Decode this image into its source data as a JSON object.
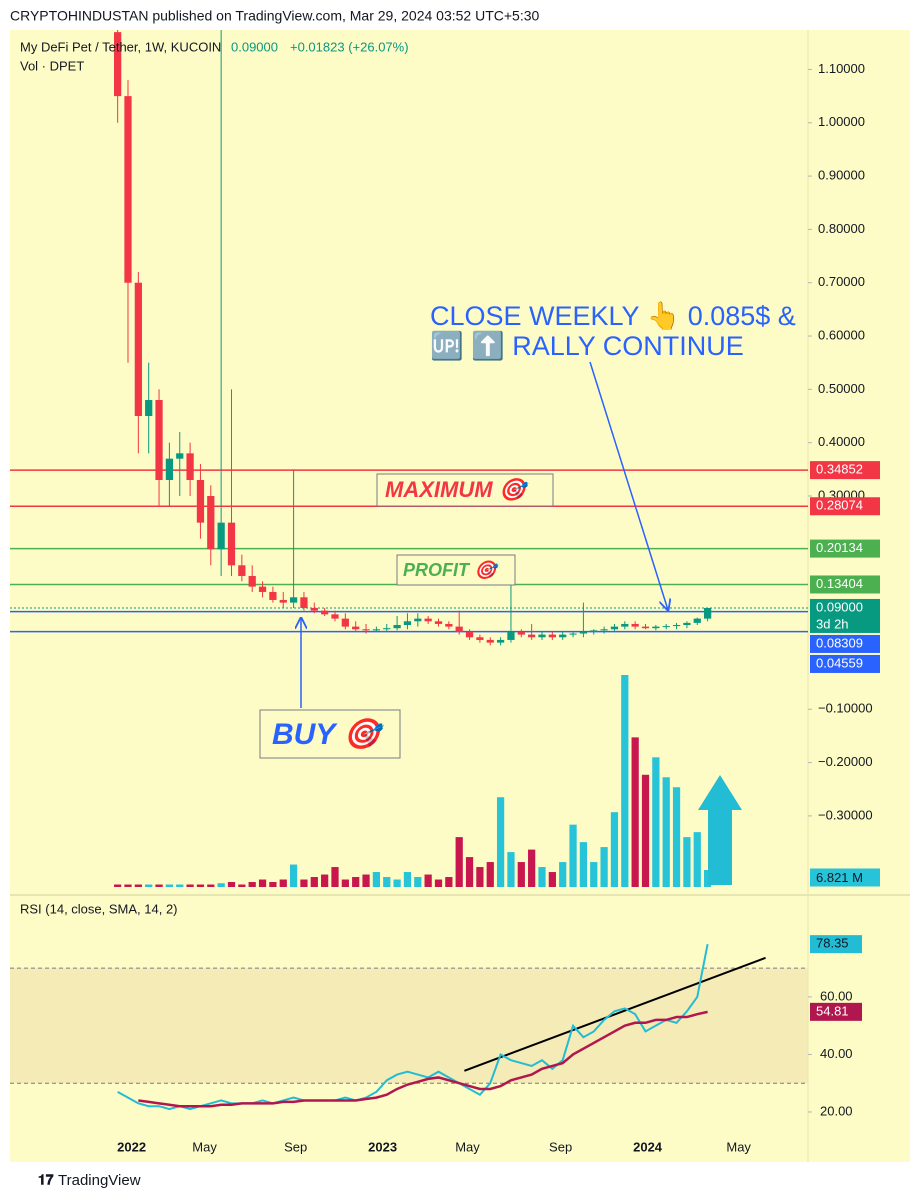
{
  "header": "CRYPTOHINDUSTAN published on TradingView.com, Mar 29, 2024 03:52 UTC+5:30",
  "footer": "TradingView",
  "chart_data": [
    {
      "type": "candlestick",
      "title": "My DeFi Pet / Tether, 1W, KUCOIN",
      "legend_price": "0.09000",
      "legend_change": "+0.01823 (+26.07%)",
      "volume_title": "Vol · DPET",
      "xlim": [
        -10.4,
        66.7
      ],
      "xticks": [
        {
          "value": 1.35,
          "label": "2022"
        },
        {
          "value": 8.4,
          "label": "May"
        },
        {
          "value": 17.2,
          "label": "Sep"
        },
        {
          "value": 25.6,
          "label": "2023"
        },
        {
          "value": 33.8,
          "label": "May"
        },
        {
          "value": 42.8,
          "label": "Sep"
        },
        {
          "value": 51.2,
          "label": "2024"
        },
        {
          "value": 60.0,
          "label": "May"
        }
      ],
      "ylim": [
        -0.439,
        1.174
      ],
      "yticks": [
        {
          "value": 1.1,
          "label": "1.10000"
        },
        {
          "value": 1.0,
          "label": "1.00000"
        },
        {
          "value": 0.9,
          "label": "0.90000"
        },
        {
          "value": 0.8,
          "label": "0.80000"
        },
        {
          "value": 0.7,
          "label": "0.70000"
        },
        {
          "value": 0.6,
          "label": "0.60000"
        },
        {
          "value": 0.5,
          "label": "0.50000"
        },
        {
          "value": 0.4,
          "label": "0.40000"
        },
        {
          "value": 0.3,
          "label": "0.30000"
        },
        {
          "value": -0.1,
          "label": "−0.10000"
        },
        {
          "value": -0.2,
          "label": "−0.20000"
        },
        {
          "value": -0.3,
          "label": "−0.30000"
        }
      ],
      "up_color": "#089981",
      "down_color": "#f23645",
      "open": [
        1.17,
        1.05,
        0.7,
        0.45,
        0.48,
        0.33,
        0.37,
        0.38,
        0.33,
        0.3,
        0.2,
        0.25,
        0.17,
        0.15,
        0.13,
        0.12,
        0.105,
        0.1,
        0.11,
        0.09,
        0.085,
        0.078,
        0.07,
        0.055,
        0.05,
        0.048,
        0.05,
        0.052,
        0.058,
        0.065,
        0.07,
        0.065,
        0.06,
        0.055,
        0.045,
        0.035,
        0.03,
        0.025,
        0.03,
        0.045,
        0.04,
        0.035,
        0.04,
        0.035,
        0.04,
        0.042,
        0.045,
        0.048,
        0.05,
        0.055,
        0.06,
        0.055,
        0.052,
        0.055,
        0.056,
        0.058,
        0.062,
        0.07
      ],
      "high": [
        1.2,
        1.08,
        0.72,
        0.55,
        0.5,
        0.4,
        0.42,
        0.4,
        0.36,
        0.32,
        1.2,
        0.5,
        0.19,
        0.17,
        0.14,
        0.13,
        0.12,
        0.35,
        0.12,
        0.1,
        0.09,
        0.085,
        0.08,
        0.065,
        0.06,
        0.055,
        0.06,
        0.075,
        0.08,
        0.08,
        0.075,
        0.07,
        0.065,
        0.085,
        0.05,
        0.04,
        0.035,
        0.035,
        0.14,
        0.05,
        0.06,
        0.045,
        0.045,
        0.045,
        0.045,
        0.1,
        0.05,
        0.055,
        0.06,
        0.065,
        0.065,
        0.06,
        0.058,
        0.06,
        0.062,
        0.065,
        0.072,
        0.09
      ],
      "low": [
        1.0,
        0.55,
        0.38,
        0.38,
        0.28,
        0.28,
        0.3,
        0.3,
        0.22,
        0.17,
        0.15,
        0.15,
        0.14,
        0.12,
        0.11,
        0.1,
        0.09,
        0.09,
        0.085,
        0.08,
        0.075,
        0.065,
        0.05,
        0.045,
        0.042,
        0.045,
        0.045,
        0.048,
        0.05,
        0.055,
        0.06,
        0.055,
        0.05,
        0.04,
        0.03,
        0.025,
        0.02,
        0.02,
        0.025,
        0.035,
        0.03,
        0.03,
        0.03,
        0.03,
        0.035,
        0.035,
        0.04,
        0.042,
        0.045,
        0.05,
        0.05,
        0.05,
        0.048,
        0.05,
        0.05,
        0.052,
        0.058,
        0.065
      ],
      "close": [
        1.05,
        0.7,
        0.45,
        0.48,
        0.33,
        0.37,
        0.38,
        0.33,
        0.25,
        0.2,
        0.25,
        0.17,
        0.15,
        0.13,
        0.12,
        0.105,
        0.1,
        0.11,
        0.09,
        0.085,
        0.078,
        0.07,
        0.055,
        0.05,
        0.048,
        0.05,
        0.052,
        0.058,
        0.065,
        0.07,
        0.065,
        0.06,
        0.055,
        0.045,
        0.035,
        0.03,
        0.025,
        0.03,
        0.045,
        0.04,
        0.035,
        0.04,
        0.035,
        0.04,
        0.042,
        0.045,
        0.048,
        0.05,
        0.055,
        0.06,
        0.055,
        0.052,
        0.055,
        0.056,
        0.058,
        0.062,
        0.07,
        0.09
      ],
      "volume": {
        "up_color": "#27c3d8",
        "down_color": "#c8174f",
        "ylim": [
          0,
          100
        ],
        "values": [
          1,
          1,
          1,
          1,
          1,
          1,
          1,
          1,
          1,
          1,
          1.5,
          2,
          1,
          2,
          3,
          2,
          3,
          9,
          3,
          4,
          5,
          8,
          3,
          4,
          5,
          6,
          4,
          3,
          6,
          4,
          5,
          3,
          4,
          20,
          12,
          8,
          10,
          36,
          14,
          10,
          15,
          8,
          6,
          10,
          25,
          18,
          10,
          16,
          30,
          85,
          60,
          45,
          52,
          44,
          40,
          20,
          22,
          6.821
        ],
        "value_labels": [
          null,
          null,
          null,
          null,
          null,
          null,
          null,
          null,
          null,
          null,
          null,
          null,
          null,
          null,
          null,
          null,
          null,
          null,
          null,
          null,
          null,
          null,
          null,
          null,
          null,
          null,
          null,
          null,
          null,
          null,
          null,
          null,
          null,
          null,
          null,
          null,
          null,
          null,
          null,
          null,
          null,
          null,
          null,
          null,
          null,
          null,
          null,
          null,
          null,
          null,
          null,
          null,
          null,
          null,
          null,
          null,
          null,
          "6.821 M"
        ]
      },
      "levels": [
        {
          "value": 0.34852,
          "color": "#f23645"
        },
        {
          "value": 0.28074,
          "color": "#f23645"
        },
        {
          "value": 0.20134,
          "color": "#4caf50"
        },
        {
          "value": 0.13404,
          "color": "#4caf50"
        },
        {
          "value": 0.09,
          "label": "0.09000",
          "sub": "3d 2h",
          "color": "#089981",
          "dotted": true
        },
        {
          "value": 0.08309,
          "color": "#2962ff"
        },
        {
          "value": 0.04559,
          "color": "#2962ff"
        }
      ],
      "annotations": {
        "note_line1": "CLOSE WEEKLY 👆 0.085$ &",
        "note_line2": "🆙 ⬆️ RALLY CONTINUE",
        "maximum": "MAXIMUM 🎯",
        "profit": "PROFIT 🎯",
        "buy": "BUY 🎯"
      }
    },
    {
      "type": "line",
      "title": "RSI (14, close, SMA, 14, 2)",
      "xlim": [
        -10.4,
        66.7
      ],
      "ylim": [
        3.3,
        93.7
      ],
      "yticks": [
        {
          "value": 60,
          "label": "60.00"
        },
        {
          "value": 40,
          "label": "40.00"
        },
        {
          "value": 20,
          "label": "20.00"
        }
      ],
      "band": [
        30,
        70
      ],
      "trendline": {
        "x": [
          33.5,
          62.6
        ],
        "y": [
          34.3,
          73.6
        ]
      },
      "series": [
        {
          "color": "#22bcd4",
          "values": [
            27,
            25,
            23,
            22,
            22,
            21,
            22,
            21,
            22,
            23,
            24,
            23,
            23,
            23,
            24,
            23,
            24,
            25,
            24,
            24,
            24,
            24,
            25,
            24,
            25,
            27,
            31,
            33,
            34,
            33,
            32,
            34,
            32,
            30,
            28,
            26,
            30,
            40,
            38,
            37,
            36,
            38,
            35,
            38,
            50,
            46,
            48,
            52,
            55,
            56,
            54,
            48,
            50,
            52,
            51,
            55,
            60,
            78.35
          ]
        },
        {
          "color": "#b0174f",
          "values": [
            null,
            null,
            24,
            23.5,
            23,
            22.5,
            22,
            22,
            22,
            22,
            22.5,
            22.5,
            23,
            23,
            23,
            23,
            23.5,
            23.5,
            24,
            24,
            24,
            24,
            24,
            24,
            24.5,
            25,
            26,
            28,
            29.5,
            30.5,
            31.5,
            32,
            31,
            30,
            29,
            28,
            28,
            29,
            31,
            32,
            33,
            35,
            36,
            37,
            40,
            42,
            44,
            46,
            48,
            50,
            51,
            51,
            52,
            52,
            53,
            53,
            54,
            54.81
          ]
        }
      ]
    }
  ]
}
